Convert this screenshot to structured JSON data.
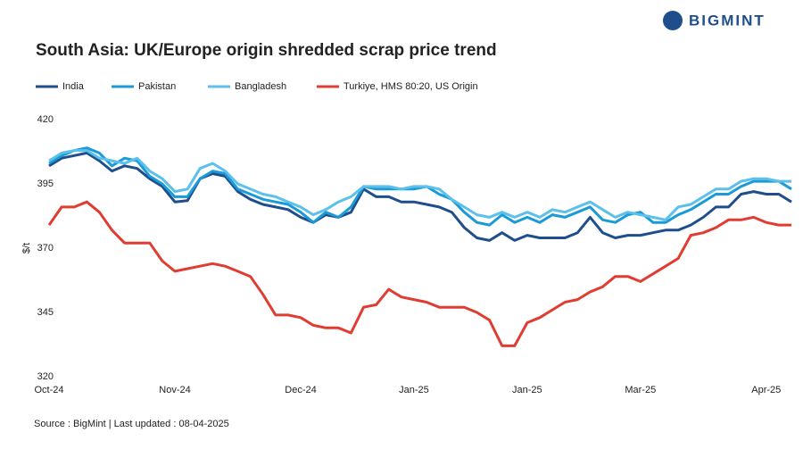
{
  "brand": "BIGMINT",
  "chart_data": {
    "type": "line",
    "title": "South Asia: UK/Europe origin shredded scrap price trend",
    "ylabel": "$/t",
    "source": "Source : BigMint | Last updated : 08-04-2025",
    "categories": [
      "Oct-24",
      null,
      null,
      null,
      null,
      null,
      null,
      null,
      null,
      null,
      "Nov-24",
      null,
      null,
      null,
      null,
      null,
      null,
      null,
      null,
      null,
      "Dec-24",
      null,
      null,
      null,
      null,
      null,
      null,
      null,
      null,
      "Jan-25",
      null,
      null,
      null,
      null,
      null,
      null,
      null,
      null,
      "Jan-25",
      null,
      null,
      null,
      null,
      null,
      null,
      null,
      null,
      "Mar-25",
      null,
      null,
      null,
      null,
      null,
      null,
      null,
      null,
      null,
      "Apr-25",
      null,
      null
    ],
    "series": [
      {
        "name": "India",
        "color": "#1f4e8c",
        "values": [
          402,
          405,
          406,
          407,
          404,
          400,
          402,
          401,
          397,
          394,
          388,
          388.5,
          397,
          399,
          398,
          392,
          389,
          387,
          386,
          385,
          382,
          380,
          383,
          382,
          384,
          393,
          390,
          390,
          388,
          388,
          387,
          386,
          384,
          378,
          374,
          373,
          376,
          373,
          375,
          374,
          374,
          374,
          376,
          382,
          376,
          374,
          375,
          375,
          376,
          377,
          377,
          379,
          382,
          386,
          386,
          391,
          392,
          391,
          391,
          388
        ]
      },
      {
        "name": "Pakistan",
        "color": "#1a9ad6",
        "values": [
          403,
          406,
          408,
          409,
          407,
          402,
          405,
          404,
          398,
          395,
          390,
          390,
          397,
          400,
          399,
          393,
          391,
          389,
          388,
          387,
          384,
          380,
          384,
          382,
          386,
          394,
          393,
          393,
          393,
          393,
          394,
          391,
          389,
          384,
          380,
          379,
          383,
          380,
          382,
          380,
          383,
          382,
          384,
          386,
          381,
          380,
          383,
          384,
          380,
          380,
          383,
          385,
          388,
          391,
          391,
          394,
          396,
          396,
          396,
          393
        ]
      },
      {
        "name": "Bangladesh",
        "color": "#5bc0eb",
        "values": [
          404,
          407,
          408,
          408,
          405,
          404,
          403,
          405,
          400,
          397,
          392,
          393,
          401,
          403,
          400,
          395,
          393,
          391,
          390,
          388,
          386,
          383,
          385,
          388,
          390,
          394,
          394,
          394,
          393,
          394,
          394,
          393,
          389,
          386,
          383,
          382,
          384,
          382,
          384,
          382,
          385,
          384,
          386,
          388,
          385,
          382,
          384,
          383,
          382,
          381,
          386,
          387,
          390,
          393,
          393,
          396,
          397,
          397,
          396,
          396
        ]
      },
      {
        "name": "Turkiye, HMS 80:20, US Origin",
        "color": "#e03c31",
        "values": [
          379,
          386,
          386,
          388,
          384,
          377,
          372,
          372,
          372,
          365,
          361,
          362,
          363,
          364,
          363,
          361,
          359,
          352,
          344,
          344,
          343,
          340,
          339,
          339,
          337,
          347,
          348,
          354,
          351,
          350,
          349,
          347,
          347,
          347,
          345,
          342,
          332,
          332,
          341,
          343,
          346,
          349,
          350,
          353,
          355,
          359,
          359,
          357,
          360,
          363,
          366,
          375,
          376,
          378,
          381,
          381,
          382,
          380,
          379,
          379
        ]
      }
    ],
    "ylim": [
      320,
      420
    ],
    "yticks": [
      320,
      345,
      370,
      395,
      420
    ],
    "grid": false
  }
}
